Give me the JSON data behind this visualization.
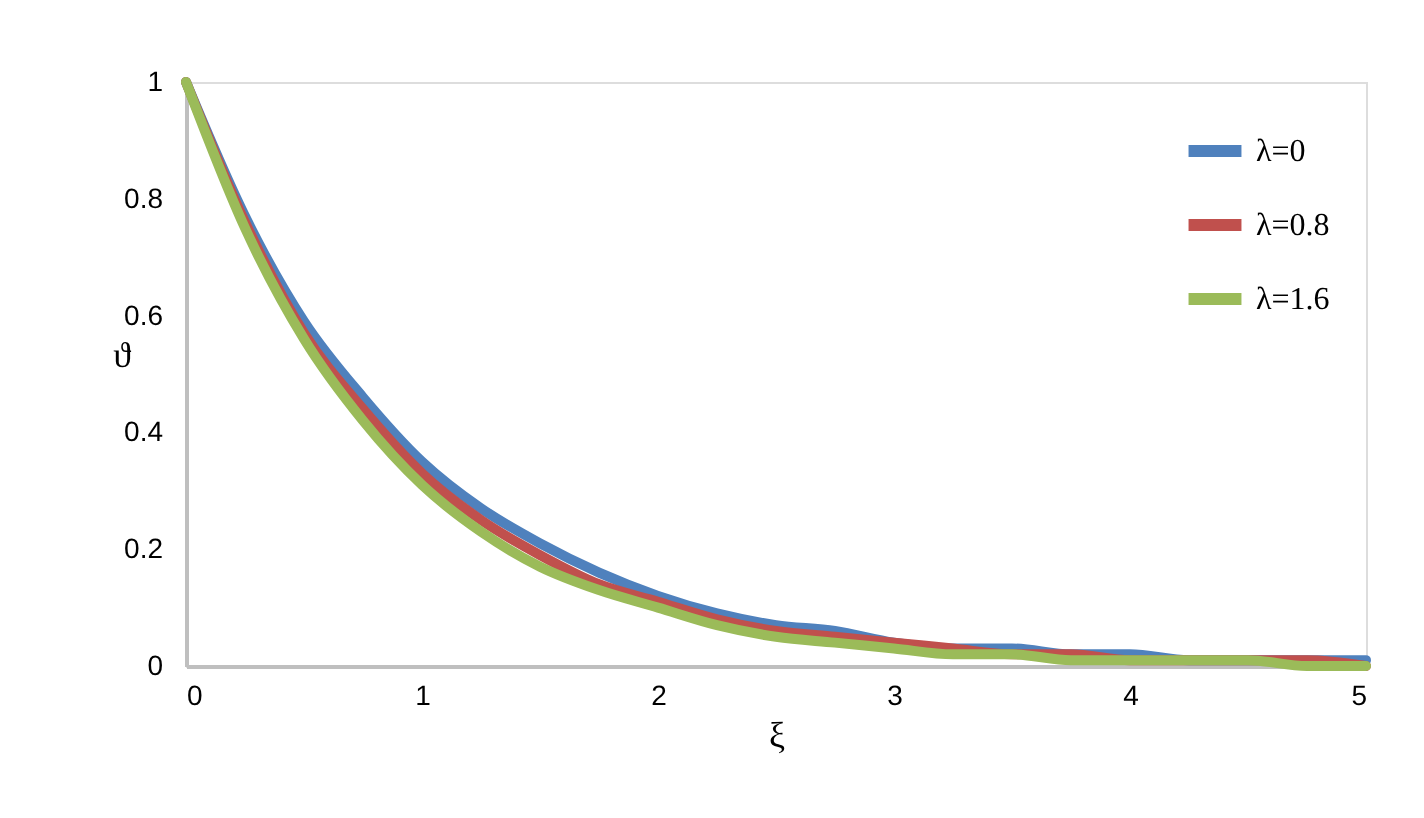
{
  "chart_data": {
    "type": "line",
    "xlabel": "ξ",
    "ylabel": "ϑ",
    "x": [
      0,
      0.25,
      0.5,
      0.75,
      1,
      1.25,
      1.5,
      1.75,
      2,
      2.25,
      2.5,
      2.75,
      3,
      3.25,
      3.5,
      3.75,
      4,
      4.25,
      4.5,
      4.75,
      5
    ],
    "series": [
      {
        "name": "λ=0",
        "color": "#4f81bd",
        "values": [
          1,
          0.77,
          0.59,
          0.46,
          0.35,
          0.27,
          0.21,
          0.16,
          0.12,
          0.09,
          0.07,
          0.06,
          0.04,
          0.03,
          0.03,
          0.02,
          0.02,
          0.01,
          0.01,
          0.01,
          0.01
        ]
      },
      {
        "name": "λ=0.8",
        "color": "#c0504d",
        "values": [
          1,
          0.76,
          0.57,
          0.44,
          0.33,
          0.25,
          0.19,
          0.14,
          0.11,
          0.08,
          0.06,
          0.05,
          0.04,
          0.03,
          0.02,
          0.02,
          0.01,
          0.01,
          0.01,
          0.01,
          0
        ]
      },
      {
        "name": "λ=1.6",
        "color": "#9bbb59",
        "values": [
          1,
          0.75,
          0.56,
          0.42,
          0.31,
          0.23,
          0.17,
          0.13,
          0.1,
          0.07,
          0.05,
          0.04,
          0.03,
          0.02,
          0.02,
          0.01,
          0.01,
          0.01,
          0.01,
          0,
          0
        ]
      }
    ],
    "xlim": [
      0,
      5
    ],
    "xticks": [
      0,
      1,
      2,
      3,
      4,
      5
    ],
    "ylim": [
      0,
      1
    ],
    "yticks": [
      0,
      0.2,
      0.4,
      0.6,
      0.8,
      1
    ],
    "grid": false,
    "legend": "top right",
    "marker": "none",
    "line_style": "solid"
  }
}
